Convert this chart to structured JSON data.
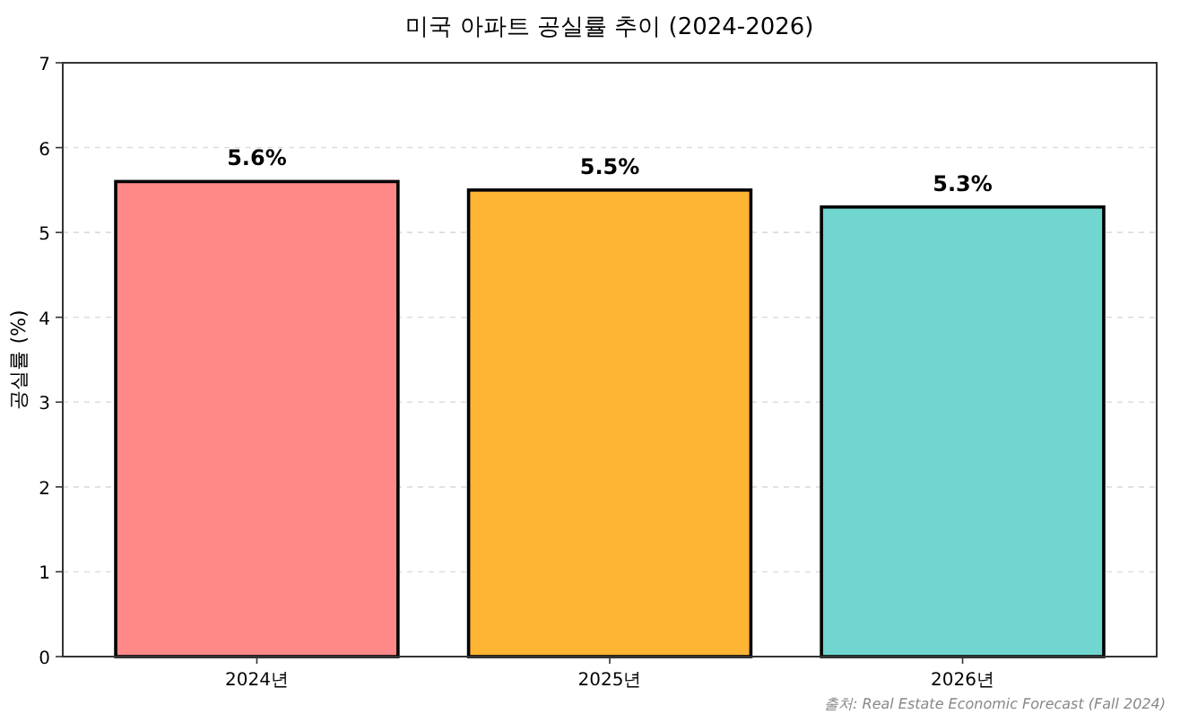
{
  "chart_data": {
    "type": "bar",
    "title": "미국 아파트 공실률 추이 (2024-2026)",
    "ylabel": "공실률 (%)",
    "categories": [
      "2024년",
      "2025년",
      "2026년"
    ],
    "values": [
      5.6,
      5.5,
      5.3
    ],
    "colors": [
      "#ff8888",
      "#ffb534",
      "#70d6cf"
    ],
    "value_labels": [
      "5.6%",
      "5.5%",
      "5.3%"
    ],
    "ylim": [
      0,
      7
    ],
    "yticks": [
      0,
      1,
      2,
      3,
      4,
      5,
      6,
      7
    ],
    "grid": "y",
    "annotations": [
      "출처: Real Estate Economic Forecast (Fall 2024)"
    ]
  }
}
